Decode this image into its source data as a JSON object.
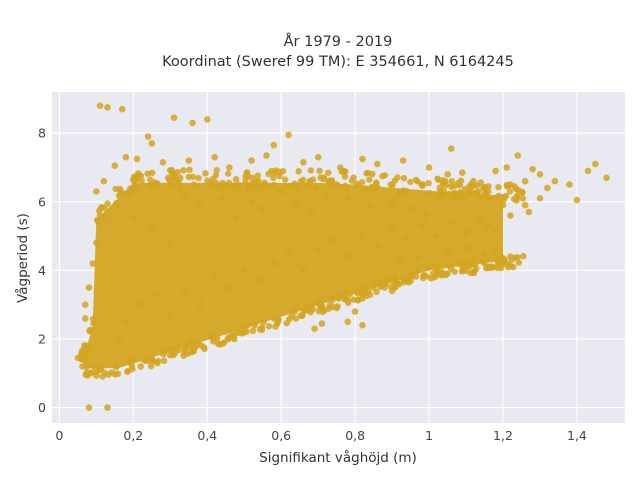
{
  "chart_data": {
    "type": "scatter",
    "title_lines": [
      "År 1979 - 2019",
      "Koordinat (Sweref 99 TM): E 354661, N 6164245"
    ],
    "xlabel": "Signifikant våghöjd (m)",
    "ylabel": "Vågperiod (s)",
    "xlim": [
      -0.02,
      1.53
    ],
    "ylim": [
      -0.45,
      9.2
    ],
    "x_ticks": [
      0,
      0.2,
      0.4,
      0.6,
      0.8,
      1,
      1.2,
      1.4
    ],
    "x_tick_labels": [
      "0",
      "0,2",
      "0,4",
      "0,6",
      "0,8",
      "1",
      "1,2",
      "1,4"
    ],
    "y_ticks": [
      0,
      2,
      4,
      6,
      8
    ],
    "y_tick_labels": [
      "0",
      "2",
      "4",
      "6",
      "8"
    ],
    "grid": true,
    "colors": {
      "marker": "#d4a520",
      "plot_bg": "#e9e9f1",
      "grid": "#ffffff"
    },
    "points": [
      [
        0.11,
        8.8
      ],
      [
        0.13,
        8.75
      ],
      [
        0.17,
        8.7
      ],
      [
        0.31,
        8.45
      ],
      [
        0.36,
        8.3
      ],
      [
        0.4,
        8.4
      ],
      [
        0.24,
        7.9
      ],
      [
        0.25,
        7.7
      ],
      [
        0.62,
        7.95
      ],
      [
        0.58,
        7.65
      ],
      [
        0.56,
        7.35
      ],
      [
        0.08,
        0.0
      ],
      [
        0.13,
        0.0
      ],
      [
        1.45,
        7.1
      ],
      [
        1.48,
        6.7
      ],
      [
        1.43,
        6.9
      ],
      [
        1.38,
        6.5
      ],
      [
        1.4,
        6.05
      ],
      [
        1.34,
        6.6
      ],
      [
        1.3,
        6.8
      ],
      [
        1.28,
        6.95
      ],
      [
        1.24,
        7.35
      ],
      [
        1.21,
        7.0
      ],
      [
        1.18,
        6.9
      ],
      [
        1.22,
        6.5
      ],
      [
        1.26,
        6.6
      ],
      [
        1.32,
        6.4
      ],
      [
        1.27,
        5.7
      ],
      [
        1.2,
        5.9
      ],
      [
        1.16,
        6.3
      ],
      [
        1.12,
        6.6
      ],
      [
        1.09,
        6.85
      ],
      [
        1.05,
        6.8
      ],
      [
        1.0,
        7.0
      ],
      [
        0.98,
        6.5
      ],
      [
        1.03,
        6.3
      ],
      [
        1.08,
        6.2
      ],
      [
        1.22,
        4.4
      ],
      [
        1.1,
        4.65
      ],
      [
        1.05,
        4.5
      ],
      [
        0.97,
        4.35
      ],
      [
        0.92,
        4.25
      ],
      [
        1.16,
        5.3
      ],
      [
        1.06,
        7.55
      ],
      [
        0.93,
        7.2
      ],
      [
        0.86,
        7.1
      ],
      [
        0.82,
        7.25
      ],
      [
        0.76,
        7.0
      ],
      [
        0.7,
        7.3
      ],
      [
        0.66,
        7.15
      ],
      [
        0.52,
        7.2
      ],
      [
        0.46,
        7.0
      ],
      [
        0.42,
        7.3
      ],
      [
        0.35,
        7.2
      ],
      [
        0.28,
        7.15
      ],
      [
        0.21,
        7.25
      ],
      [
        0.18,
        7.3
      ],
      [
        0.15,
        7.05
      ],
      [
        0.12,
        6.6
      ],
      [
        0.1,
        6.3
      ],
      [
        0.11,
        5.6
      ],
      [
        0.1,
        4.8
      ],
      [
        0.09,
        4.2
      ],
      [
        0.08,
        3.5
      ],
      [
        0.07,
        3.0
      ],
      [
        0.07,
        2.6
      ],
      [
        0.06,
        1.5
      ],
      [
        0.05,
        1.45
      ],
      [
        0.06,
        1.6
      ],
      [
        0.08,
        1.7
      ],
      [
        0.22,
        1.2
      ],
      [
        0.35,
        1.8
      ],
      [
        0.5,
        2.2
      ],
      [
        0.64,
        2.6
      ],
      [
        0.75,
        2.9
      ],
      [
        0.8,
        2.8
      ],
      [
        0.82,
        2.4
      ],
      [
        0.78,
        2.5
      ],
      [
        0.71,
        2.45
      ],
      [
        0.69,
        2.3
      ],
      [
        0.9,
        3.4
      ],
      [
        0.95,
        3.7
      ],
      [
        0.88,
        3.6
      ],
      [
        0.85,
        3.5
      ],
      [
        1.02,
        4.0
      ],
      [
        1.12,
        4.3
      ],
      [
        1.15,
        4.5
      ],
      [
        1.18,
        4.6
      ],
      [
        0.2,
        5.5
      ],
      [
        0.25,
        5.2
      ],
      [
        0.3,
        4.8
      ],
      [
        0.34,
        6.2
      ],
      [
        0.38,
        5.9
      ],
      [
        0.44,
        6.1
      ],
      [
        0.48,
        5.5
      ],
      [
        0.52,
        6.0
      ],
      [
        0.55,
        5.8
      ],
      [
        0.6,
        6.3
      ],
      [
        0.64,
        6.0
      ],
      [
        0.68,
        5.7
      ],
      [
        0.72,
        6.2
      ],
      [
        0.78,
        6.1
      ],
      [
        0.84,
        5.9
      ],
      [
        0.9,
        6.0
      ],
      [
        0.95,
        5.8
      ],
      [
        0.99,
        5.6
      ],
      [
        0.16,
        2.0
      ],
      [
        0.18,
        2.5
      ],
      [
        0.22,
        3.0
      ],
      [
        0.26,
        3.3
      ],
      [
        0.3,
        2.7
      ],
      [
        0.34,
        3.4
      ],
      [
        0.38,
        3.0
      ],
      [
        0.42,
        3.8
      ],
      [
        0.46,
        3.5
      ],
      [
        0.5,
        4.0
      ],
      [
        0.54,
        3.7
      ],
      [
        0.58,
        4.2
      ],
      [
        0.62,
        4.5
      ],
      [
        0.66,
        4.0
      ],
      [
        0.7,
        4.6
      ],
      [
        0.74,
        4.9
      ],
      [
        0.78,
        4.4
      ],
      [
        0.82,
        5.0
      ],
      [
        0.86,
        4.7
      ],
      [
        0.9,
        5.2
      ],
      [
        0.94,
        4.9
      ],
      [
        0.98,
        5.3
      ],
      [
        1.02,
        5.0
      ],
      [
        1.06,
        5.4
      ],
      [
        1.1,
        5.1
      ],
      [
        1.14,
        5.5
      ],
      [
        1.18,
        5.2
      ],
      [
        1.22,
        5.6
      ],
      [
        1.26,
        5.9
      ],
      [
        1.3,
        6.1
      ]
    ]
  }
}
